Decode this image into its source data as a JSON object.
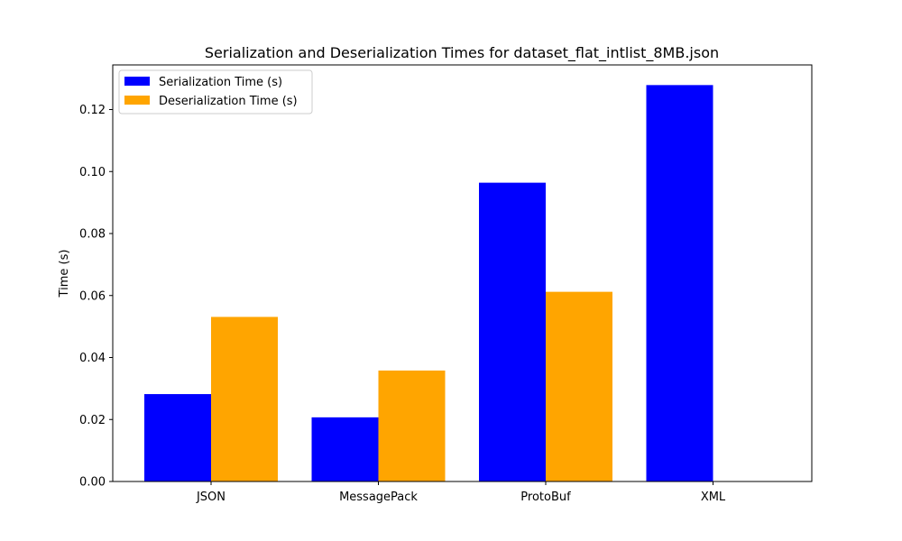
{
  "chart_data": {
    "type": "bar",
    "title": "Serialization and Deserialization Times for dataset_flat_intlist_8MB.json",
    "xlabel": "",
    "ylabel": "Time (s)",
    "categories": [
      "JSON",
      "MessagePack",
      "ProtoBuf",
      "XML"
    ],
    "series": [
      {
        "name": "Serialization Time (s)",
        "color": "#0000ff",
        "values": [
          0.0282,
          0.0207,
          0.0964,
          0.1279
        ]
      },
      {
        "name": "Deserialization Time (s)",
        "color": "#ffa500",
        "values": [
          0.0531,
          0.0358,
          0.0612,
          0
        ]
      }
    ],
    "ylim": [
      0,
      0.1344
    ],
    "yticks": [
      "0.00",
      "0.02",
      "0.04",
      "0.06",
      "0.08",
      "0.10",
      "0.12"
    ],
    "grid": false,
    "legend_position": "top-left"
  }
}
